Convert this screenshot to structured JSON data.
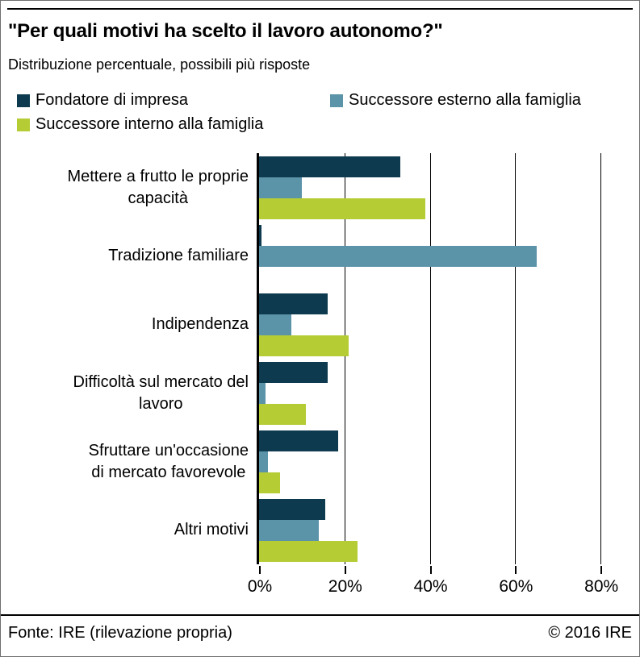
{
  "page": {
    "title": "\"Per quali motivi ha scelto il lavoro autonomo?\"",
    "subtitle": "Distribuzione percentuale, possibili più risposte",
    "footer_left": "Fonte: IRE (rilevazione propria)",
    "footer_right": "© 2016 IRE"
  },
  "legend": {
    "items": [
      {
        "label": "Fondatore di impresa",
        "color": "#0d3a4e"
      },
      {
        "label": "Successore esterno alla famiglia",
        "color": "#5b93a8"
      },
      {
        "label": "Successore interno alla famiglia",
        "color": "#b6cc35"
      }
    ]
  },
  "chart_data": {
    "type": "bar",
    "orientation": "horizontal",
    "title": "\"Per quali motivi ha scelto il lavoro autonomo?\"",
    "subtitle": "Distribuzione percentuale, possibili più risposte",
    "unit": "%",
    "grid": true,
    "legend_position": "top",
    "xlim": [
      0,
      80
    ],
    "x_ticks": [
      {
        "value": 0,
        "label": "0%"
      },
      {
        "value": 20,
        "label": "20%"
      },
      {
        "value": 40,
        "label": "40%"
      },
      {
        "value": 60,
        "label": "60%"
      },
      {
        "value": 80,
        "label": "80%"
      }
    ],
    "categories": [
      {
        "name": "Mettere a frutto le proprie capacità",
        "lines": [
          "Mettere a frutto le proprie",
          "capacità"
        ]
      },
      {
        "name": "Tradizione familiare",
        "lines": [
          "Tradizione familiare"
        ]
      },
      {
        "name": "Indipendenza",
        "lines": [
          "Indipendenza"
        ]
      },
      {
        "name": "Difficoltà sul mercato del lavoro",
        "lines": [
          "Difficoltà sul mercato del",
          "lavoro"
        ]
      },
      {
        "name": "Sfruttare un'occasione di mercato favorevole",
        "lines": [
          "Sfruttare un'occasione",
          "di mercato favorevole"
        ]
      },
      {
        "name": "Altri motivi",
        "lines": [
          "Altri motivi"
        ]
      }
    ],
    "series": [
      {
        "name": "Fondatore di impresa",
        "color": "#0d3a4e",
        "values": [
          33,
          0.5,
          16,
          16,
          18.5,
          15.5
        ]
      },
      {
        "name": "Successore esterno alla famiglia",
        "color": "#5b93a8",
        "values": [
          10,
          65,
          7.5,
          1.5,
          2,
          14
        ]
      },
      {
        "name": "Successore interno alla famiglia",
        "color": "#b6cc35",
        "values": [
          39,
          0,
          21,
          11,
          5,
          23
        ]
      }
    ]
  }
}
